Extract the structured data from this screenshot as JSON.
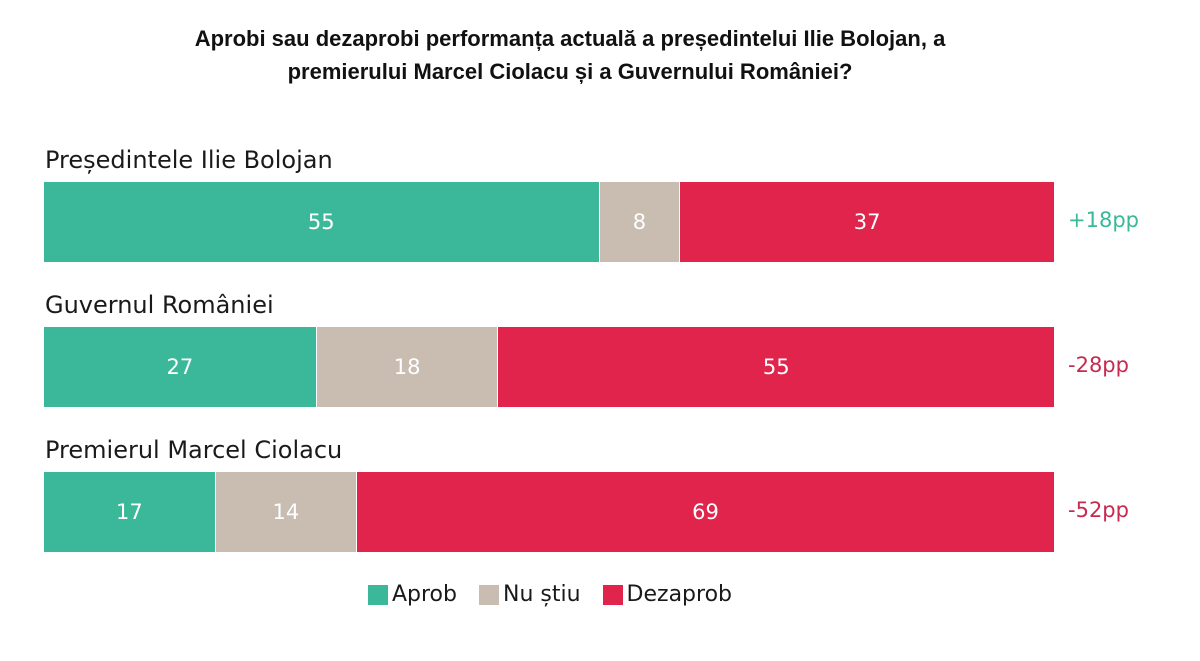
{
  "colors": {
    "approve": "#3bb89a",
    "unsure": "#c9bcb1",
    "disapprove": "#e0244c",
    "positive_net": "#3bb89a",
    "negative_net": "#c8294f"
  },
  "chart_data": {
    "type": "bar",
    "orientation": "horizontal",
    "stacked": true,
    "title": "Aprobi sau dezaprobi performanța actuală a președintelui Ilie Bolojan, a premierului Marcel Ciolacu și a Guvernului României?",
    "title_lines": [
      "Aprobi sau dezaprobi performanța actuală a președintelui Ilie Bolojan, a",
      "premierului Marcel Ciolacu și a Guvernului României?"
    ],
    "categories": [
      "Președintele Ilie Bolojan",
      "Guvernul României",
      "Premierul Marcel Ciolacu"
    ],
    "series": [
      {
        "name": "Aprob",
        "values": [
          55,
          27,
          17
        ],
        "color_key": "approve"
      },
      {
        "name": "Nu știu",
        "values": [
          8,
          18,
          14
        ],
        "color_key": "unsure"
      },
      {
        "name": "Dezaprob",
        "values": [
          37,
          55,
          69
        ],
        "color_key": "disapprove"
      }
    ],
    "net_labels": [
      "+18pp",
      "-28pp",
      "-52pp"
    ],
    "xlim": [
      0,
      100
    ],
    "grid": false,
    "legend_position": "bottom-center"
  }
}
